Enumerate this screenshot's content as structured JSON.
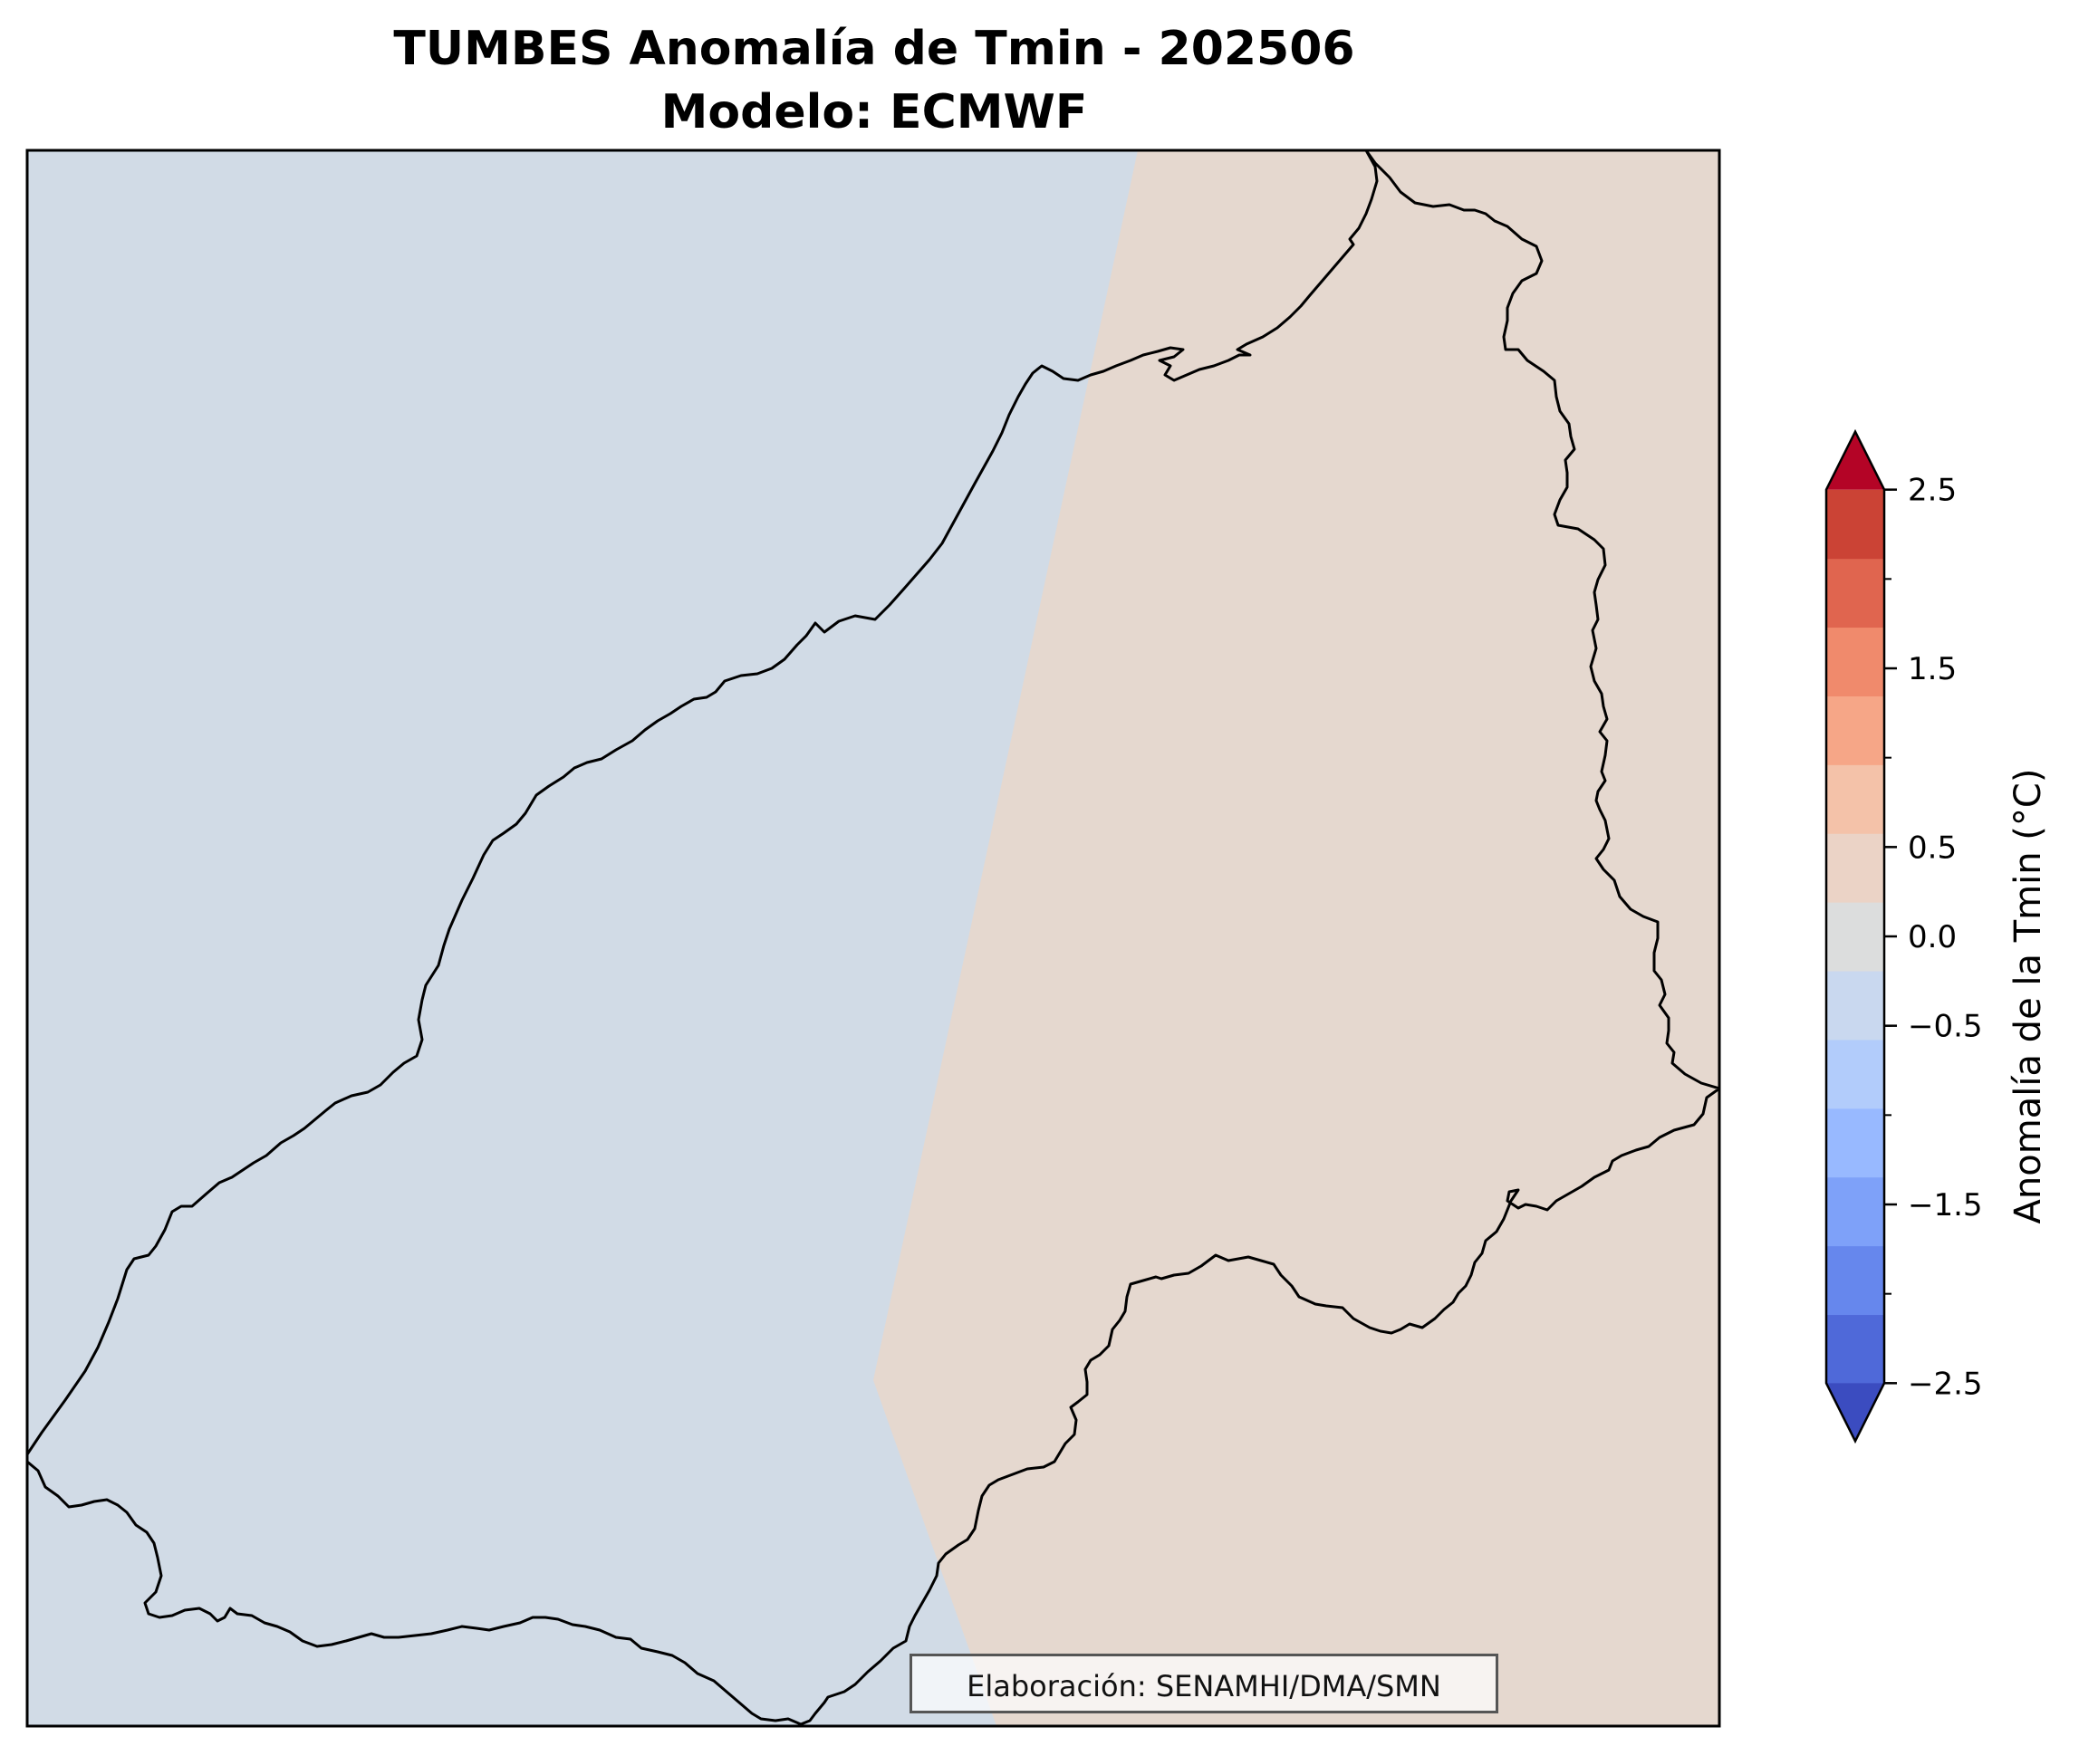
{
  "title": "TUMBES Anomalía de Tmin - 202506",
  "subtitle": "Modelo: ECMWF",
  "credit": "Elaboración: SENAMHI/DMA/SMN",
  "colorbar": {
    "label": "Anomalía de la Tmin (°C)",
    "range": [
      -3,
      3
    ],
    "step": 0.5,
    "extend": "both",
    "ticks": [
      "2.5",
      "1.5",
      "0.5",
      "0.0",
      "−0.5",
      "−1.5",
      "−2.5"
    ],
    "colors": [
      "#3b4cc0",
      "#4f69d9",
      "#6687ed",
      "#7ea1f9",
      "#98b9ff",
      "#b2ccfb",
      "#c9d8ef",
      "#dcdddd",
      "#ebd3c6",
      "#f4c2a9",
      "#f6a687",
      "#f08a6c",
      "#e0654f",
      "#cb4335",
      "#b40426"
    ],
    "colors_note_removed": true
  },
  "map": {
    "regions": [
      {
        "name": "anomaly 0.0 to -0.5",
        "color": "#d1dbe6"
      },
      {
        "name": "anomaly 0.0 to 0.5",
        "color": "#e5d8cf"
      }
    ]
  }
}
